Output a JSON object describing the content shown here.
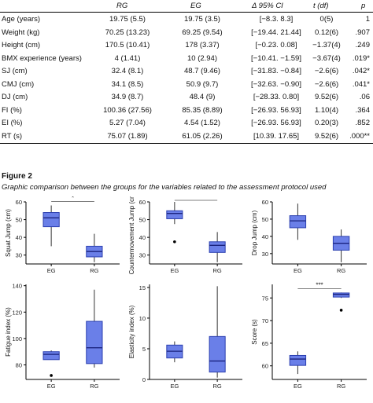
{
  "table": {
    "headers": [
      "",
      "RG",
      "EG",
      "Δ 95% CI",
      "t (df)",
      "p"
    ],
    "rows": [
      [
        "Age (years)",
        "19.75 (5.5)",
        "19.75 (3.5)",
        "[−8.3. 8.3]",
        "0(5)",
        "1"
      ],
      [
        "Weight (kg)",
        "70.25 (13.23)",
        "69.25 (9.54)",
        "[−19.44. 21.44]",
        "0.12(6)",
        ".907"
      ],
      [
        "Height (cm)",
        "170.5 (10.41)",
        "178 (3.37)",
        "[−0.23. 0.08]",
        "−1.37(4)",
        ".249"
      ],
      [
        "BMX experience (years)",
        "4 (1.41)",
        "10 (2.94)",
        "[−10.41. −1.59]",
        "−3.67(4)",
        ".019*"
      ],
      [
        "SJ (cm)",
        "32.4 (8.1)",
        "48.7 (9.46)",
        "[−31.83. −0.84]",
        "−2.6(6)",
        ".042*"
      ],
      [
        "CMJ (cm)",
        "34.1 (8.5)",
        "50.9 (9.7)",
        "[−32.63. −0.90]",
        "−2.6(6)",
        ".041*"
      ],
      [
        "DJ (cm)",
        "34.9 (8.7)",
        "48.4 (9)",
        "[−28.33. 0.80]",
        "9.52(6)",
        ".06"
      ],
      [
        "FI (%)",
        "100.36 (27.56)",
        "85.35 (8.89)",
        "[−26.93. 56.93]",
        "1.10(4)",
        ".364"
      ],
      [
        "EI (%)",
        "5.27 (7.04)",
        "4.54 (1.52)",
        "[−26.93. 56.93]",
        "0.20(3)",
        ".852"
      ],
      [
        "RT (s)",
        "75.07 (1.89)",
        "61.05 (2.26)",
        "[10.39. 17.65]",
        "9.52(6)",
        ".000**"
      ]
    ]
  },
  "figure": {
    "label": "Figure 2",
    "caption": "Graphic comparison between the groups for the variables related to the assessment protocol used"
  },
  "colors": {
    "box_fill": "#6a7fe8",
    "box_stroke": "#2b3fb0",
    "axis": "#000000"
  },
  "chart_data": [
    {
      "type": "box",
      "ylabel": "Squat Jump (cm)",
      "categories": [
        "EG",
        "RG"
      ],
      "ylim": [
        25,
        60
      ],
      "yticks": [
        30,
        40,
        50,
        60
      ],
      "ytick_labels": [
        "30",
        "40",
        "50",
        "60"
      ],
      "boxes": [
        {
          "min": 35,
          "q1": 46,
          "median": 51,
          "q3": 54,
          "max": 58,
          "outliers": []
        },
        {
          "min": 26,
          "q1": 29,
          "median": 32,
          "q3": 35,
          "max": 42,
          "outliers": []
        }
      ],
      "significance": "*"
    },
    {
      "type": "box",
      "ylabel": "Countermovement Jump (cm)",
      "categories": [
        "EG",
        "RG"
      ],
      "ylim": [
        25,
        60
      ],
      "yticks": [
        30,
        40,
        50,
        60
      ],
      "ytick_labels": [
        "30",
        "40",
        "50",
        "60"
      ],
      "boxes": [
        {
          "min": 47.5,
          "q1": 50.5,
          "median": 53.5,
          "q3": 55,
          "max": 60,
          "outliers": [
            37.5
          ]
        },
        {
          "min": 26,
          "q1": 31.5,
          "median": 35.5,
          "q3": 37.5,
          "max": 43,
          "outliers": []
        }
      ],
      "significance": "*"
    },
    {
      "type": "box",
      "ylabel": "Drop Jump (cm)",
      "categories": [
        "EG",
        "RG"
      ],
      "ylim": [
        24,
        60
      ],
      "yticks": [
        30,
        40,
        50,
        60
      ],
      "ytick_labels": [
        "30",
        "40",
        "50",
        "60"
      ],
      "boxes": [
        {
          "min": 38,
          "q1": 45,
          "median": 49,
          "q3": 52,
          "max": 59,
          "outliers": []
        },
        {
          "min": 25,
          "q1": 32,
          "median": 36,
          "q3": 40,
          "max": 44,
          "outliers": []
        }
      ],
      "significance": ""
    },
    {
      "type": "box",
      "ylabel": "Fatigue index (%)",
      "categories": [
        "EG",
        "RG"
      ],
      "ylim": [
        69,
        141
      ],
      "yticks": [
        80,
        100,
        120,
        140
      ],
      "ytick_labels": [
        "80",
        "100",
        "120",
        "140"
      ],
      "boxes": [
        {
          "min": 84,
          "q1": 84,
          "median": 88,
          "q3": 90,
          "max": 91,
          "outliers": [
            72
          ]
        },
        {
          "min": 78,
          "q1": 81,
          "median": 93,
          "q3": 113,
          "max": 137,
          "outliers": []
        }
      ],
      "significance": ""
    },
    {
      "type": "box",
      "ylabel": "Elasticity index (%)",
      "categories": [
        "EG",
        "RG"
      ],
      "ylim": [
        0,
        15.5
      ],
      "yticks": [
        0,
        5,
        10,
        15
      ],
      "ytick_labels": [
        "0",
        "5",
        "10",
        "15"
      ],
      "boxes": [
        {
          "min": 2.8,
          "q1": 3.5,
          "median": 4.6,
          "q3": 5.6,
          "max": 6.2,
          "outliers": []
        },
        {
          "min": 0.3,
          "q1": 1.2,
          "median": 3.0,
          "q3": 7.0,
          "max": 15.2,
          "outliers": []
        }
      ],
      "significance": ""
    },
    {
      "type": "box",
      "ylabel": "Score (s)",
      "categories": [
        "EG",
        "RG"
      ],
      "ylim": [
        57,
        78
      ],
      "yticks": [
        60,
        65,
        70,
        75
      ],
      "ytick_labels": [
        "60",
        "65",
        "70",
        "75"
      ],
      "boxes": [
        {
          "min": 58.2,
          "q1": 60.1,
          "median": 61.5,
          "q3": 62.3,
          "max": 63.2,
          "outliers": []
        },
        {
          "min": 75,
          "q1": 75.2,
          "median": 75.8,
          "q3": 76.1,
          "max": 76.2,
          "outliers": [
            72.3
          ]
        }
      ],
      "significance": "***"
    }
  ]
}
